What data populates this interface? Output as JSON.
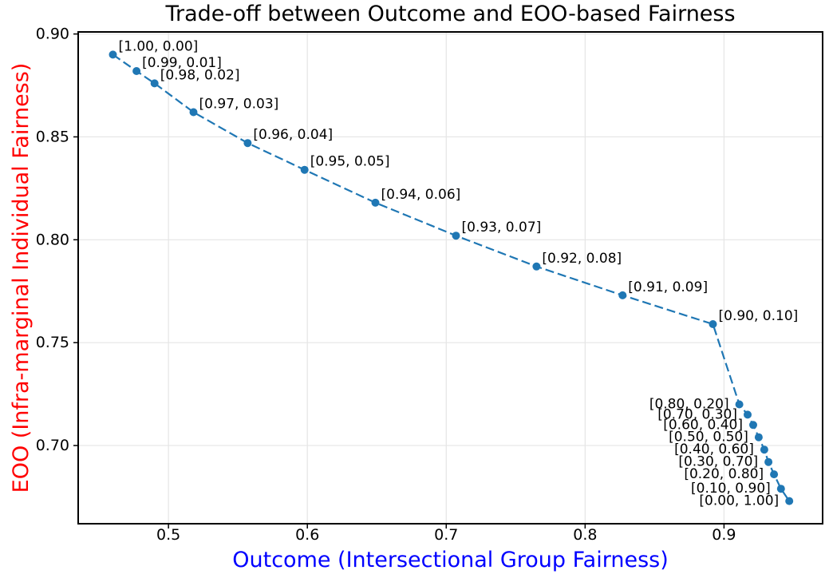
{
  "colors": {
    "line": "#1f77b4",
    "marker": "#1f77b4",
    "title": "#000000",
    "xlabel": "#0000ff",
    "ylabel": "#ff0000",
    "tick_label": "#000000",
    "annotation": "#000000",
    "grid": "#e5e5e5",
    "spine": "#000000",
    "background": "#ffffff"
  },
  "chart_data": {
    "type": "line",
    "title": "Trade-off between Outcome and EOO-based Fairness",
    "xlabel": "Outcome (Intersectional Group Fairness)",
    "ylabel": "EOO (Infra-marginal Individual Fairness)",
    "xlim": [
      0.435,
      0.971
    ],
    "ylim": [
      0.662,
      0.901
    ],
    "xticks": [
      0.5,
      0.6,
      0.7,
      0.8,
      0.9
    ],
    "xtick_labels": [
      "0.5",
      "0.6",
      "0.7",
      "0.8",
      "0.9"
    ],
    "yticks": [
      0.7,
      0.75,
      0.8,
      0.85,
      0.9
    ],
    "ytick_labels": [
      "0.70",
      "0.75",
      "0.80",
      "0.85",
      "0.90"
    ],
    "grid": true,
    "legend": false,
    "line_style": "dashed",
    "marker": "circle",
    "points": [
      {
        "x": 0.46,
        "y": 0.89,
        "label": "[1.00, 0.00]",
        "label_side": "right"
      },
      {
        "x": 0.477,
        "y": 0.882,
        "label": "[0.99, 0.01]",
        "label_side": "right"
      },
      {
        "x": 0.49,
        "y": 0.876,
        "label": "[0.98, 0.02]",
        "label_side": "right"
      },
      {
        "x": 0.518,
        "y": 0.862,
        "label": "[0.97, 0.03]",
        "label_side": "right"
      },
      {
        "x": 0.557,
        "y": 0.847,
        "label": "[0.96, 0.04]",
        "label_side": "right"
      },
      {
        "x": 0.598,
        "y": 0.834,
        "label": "[0.95, 0.05]",
        "label_side": "right"
      },
      {
        "x": 0.649,
        "y": 0.818,
        "label": "[0.94, 0.06]",
        "label_side": "right"
      },
      {
        "x": 0.707,
        "y": 0.802,
        "label": "[0.93, 0.07]",
        "label_side": "right"
      },
      {
        "x": 0.765,
        "y": 0.787,
        "label": "[0.92, 0.08]",
        "label_side": "right"
      },
      {
        "x": 0.827,
        "y": 0.773,
        "label": "[0.91, 0.09]",
        "label_side": "right"
      },
      {
        "x": 0.892,
        "y": 0.759,
        "label": "[0.90, 0.10]",
        "label_side": "right"
      },
      {
        "x": 0.911,
        "y": 0.72,
        "label": "[0.80, 0.20]",
        "label_side": "left"
      },
      {
        "x": 0.917,
        "y": 0.715,
        "label": "[0.70, 0.30]",
        "label_side": "left"
      },
      {
        "x": 0.921,
        "y": 0.71,
        "label": "[0.60, 0.40]",
        "label_side": "left"
      },
      {
        "x": 0.925,
        "y": 0.704,
        "label": "[0.50, 0.50]",
        "label_side": "left"
      },
      {
        "x": 0.929,
        "y": 0.698,
        "label": "[0.40, 0.60]",
        "label_side": "left"
      },
      {
        "x": 0.932,
        "y": 0.692,
        "label": "[0.30, 0.70]",
        "label_side": "left"
      },
      {
        "x": 0.936,
        "y": 0.686,
        "label": "[0.20, 0.80]",
        "label_side": "left"
      },
      {
        "x": 0.941,
        "y": 0.679,
        "label": "[0.10, 0.90]",
        "label_side": "left"
      },
      {
        "x": 0.947,
        "y": 0.673,
        "label": "[0.00, 1.00]",
        "label_side": "left"
      }
    ]
  }
}
